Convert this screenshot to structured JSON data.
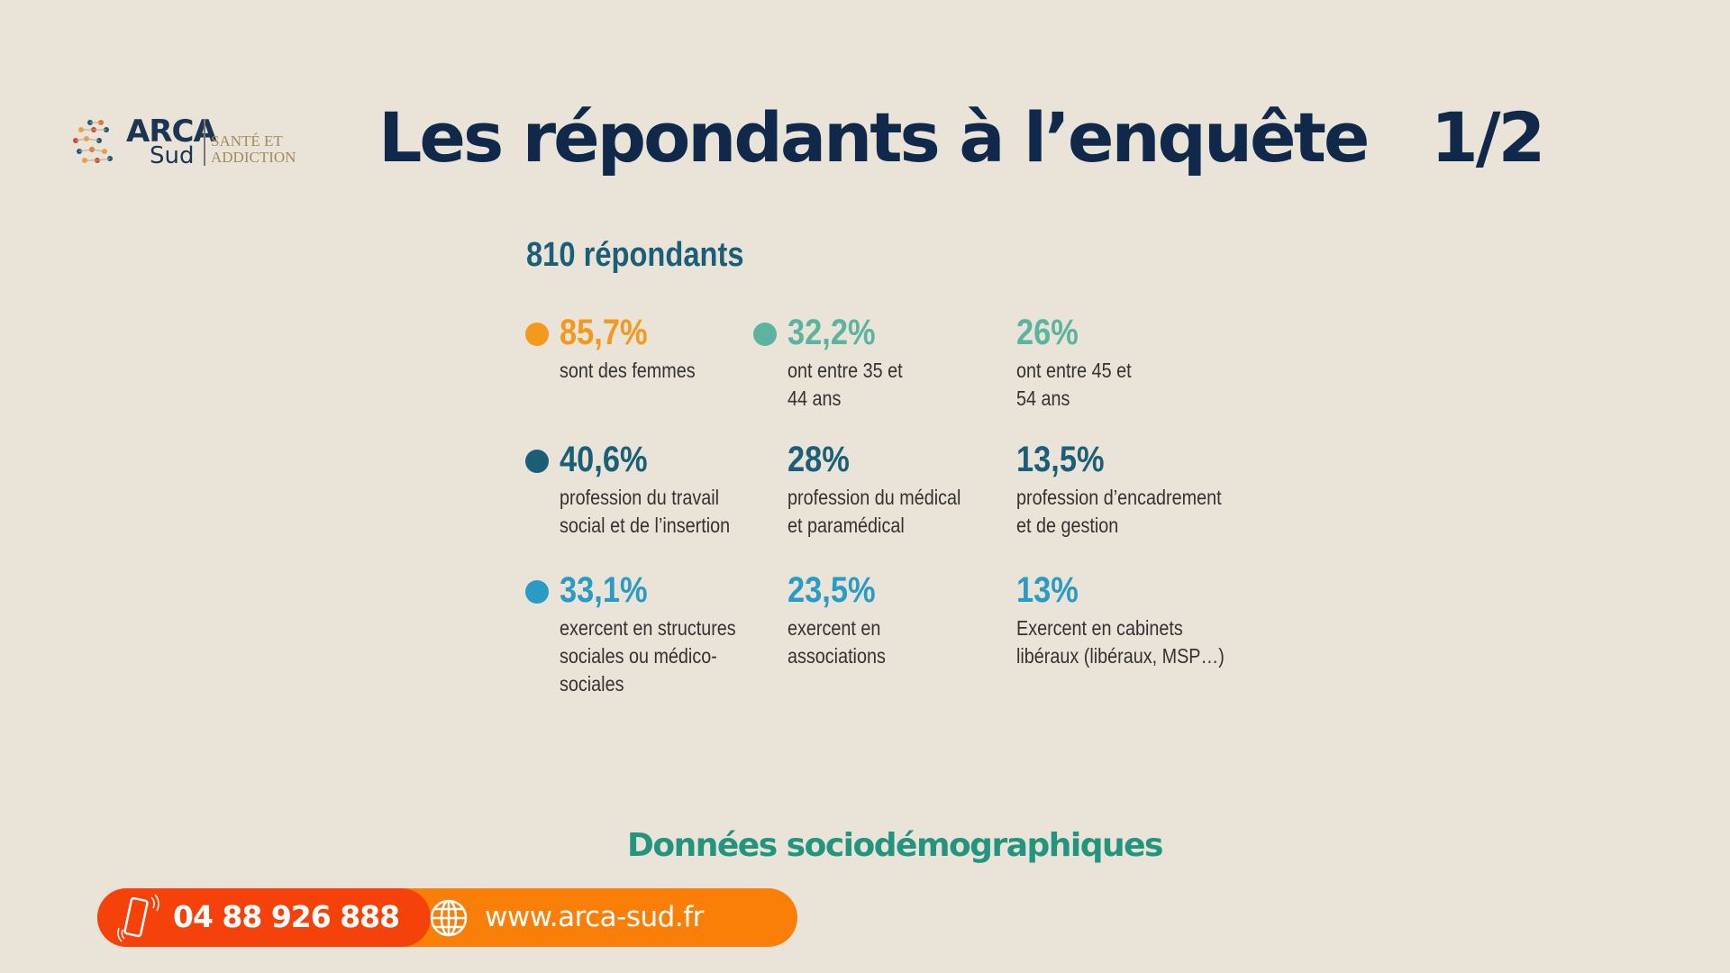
{
  "logo": {
    "name_top": "ARCA",
    "name_bottom": "Sud",
    "tagline_1": "SANTÉ ET",
    "tagline_2": "ADDICTION"
  },
  "header": {
    "title": "Les répondants à l’enquête   1/2"
  },
  "summary": {
    "respondents": "810 répondants"
  },
  "colors": {
    "orange": "#f39a1e",
    "light_teal": "#5cb4a0",
    "dark_teal": "#1b5e77",
    "blue": "#2a9cc4",
    "title": "#10284a"
  },
  "stats": [
    {
      "value": "85,7%",
      "desc": "sont des femmes",
      "color": "#f39a1e",
      "dot": true
    },
    {
      "value": "32,2%",
      "desc": "ont entre 35 et\n44 ans",
      "color": "#5cb4a0",
      "dot": true
    },
    {
      "value": "26%",
      "desc": "ont entre 45 et\n54 ans",
      "color": "#5cb4a0",
      "dot": false
    },
    {
      "value": "40,6%",
      "desc": "profession du travail\nsocial et de l’insertion",
      "color": "#1b5e77",
      "dot": true
    },
    {
      "value": "28%",
      "desc": "profession du médical\net paramédical",
      "color": "#1b5e77",
      "dot": false
    },
    {
      "value": "13,5%",
      "desc": "profession d’encadrement\net de gestion",
      "color": "#1b5e77",
      "dot": false
    },
    {
      "value": "33,1%",
      "desc": "exercent en structures\nsociales ou médico-\nsociales",
      "color": "#2a9cc4",
      "dot": true
    },
    {
      "value": "23,5%",
      "desc": "exercent en\nassociations",
      "color": "#2a9cc4",
      "dot": false
    },
    {
      "value": "13%",
      "desc": "Exercent en cabinets\nlibéraux (libéraux, MSP…)",
      "color": "#2a9cc4",
      "dot": false
    }
  ],
  "section_label": "Données sociodémographiques",
  "footer": {
    "phone": "04 88 926 888",
    "website": "www.arca-sud.fr",
    "phone_icon": "smartphone-icon",
    "web_icon": "globe-icon"
  }
}
